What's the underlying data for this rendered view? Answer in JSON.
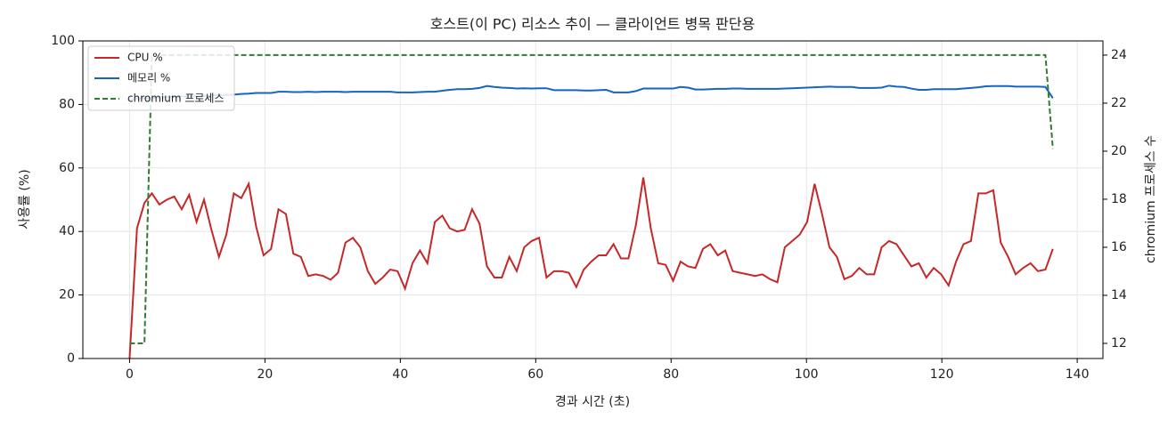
{
  "chart_data": {
    "type": "line",
    "title": "호스트(이 PC) 리소스 추이 — 클라이언트 병목 판단용",
    "x_label": "경과 시간 (초)",
    "y_label": "사용률 (%)",
    "y2_label": "chromium 프로세스 수",
    "xlim": [
      -6.9,
      143.8
    ],
    "xticks": [
      0,
      20,
      40,
      60,
      80,
      100,
      120,
      140
    ],
    "ylim": [
      0,
      100
    ],
    "yticks": [
      0,
      20,
      40,
      60,
      80,
      100
    ],
    "y2lim": [
      11.37,
      24.59
    ],
    "y2ticks": [
      12,
      14,
      16,
      18,
      20,
      22,
      24
    ],
    "grid": true,
    "legend": "upper left",
    "x": [
      0,
      1.1,
      2.2,
      3.3,
      4.4,
      5.5,
      6.6,
      7.7,
      8.8,
      9.9,
      11,
      12.1,
      13.2,
      14.3,
      15.4,
      16.5,
      17.6,
      18.7,
      19.8,
      20.9,
      22,
      23.1,
      24.2,
      25.3,
      26.4,
      27.5,
      28.6,
      29.7,
      30.8,
      31.9,
      33,
      34.1,
      35.2,
      36.3,
      37.4,
      38.5,
      39.6,
      40.7,
      41.8,
      42.9,
      44,
      45.1,
      46.2,
      47.3,
      48.4,
      49.5,
      50.6,
      51.7,
      52.8,
      53.9,
      55,
      56.1,
      57.2,
      58.3,
      59.4,
      60.5,
      61.6,
      62.7,
      63.8,
      64.9,
      66,
      67.1,
      68.2,
      69.3,
      70.4,
      71.5,
      72.6,
      73.7,
      74.8,
      75.9,
      77,
      78.1,
      79.2,
      80.3,
      81.4,
      82.5,
      83.6,
      84.7,
      85.8,
      86.9,
      88,
      89.1,
      90.2,
      91.3,
      92.4,
      93.5,
      94.6,
      95.7,
      96.8,
      97.9,
      99,
      100.1,
      101.2,
      102.3,
      103.4,
      104.5,
      105.6,
      106.7,
      107.8,
      108.9,
      110,
      111.1,
      112.2,
      113.3,
      114.4,
      115.5,
      116.6,
      117.7,
      118.8,
      119.9,
      121,
      122.1,
      123.2,
      124.3,
      125.4,
      126.5,
      127.6,
      128.7,
      129.8,
      130.9,
      132,
      133.1,
      134.2,
      135.3,
      136.4
    ],
    "series": [
      {
        "name": "CPU %",
        "color": "#c62828",
        "values": [
          0,
          41,
          49,
          52,
          48.5,
          50,
          51,
          47,
          51.5,
          43,
          50,
          40.5,
          32,
          39,
          52,
          50.5,
          55,
          41.5,
          32.5,
          34.5,
          47,
          45.5,
          33,
          32,
          26,
          26.5,
          26,
          24.8,
          27,
          36.5,
          38,
          35,
          27.5,
          23.5,
          25.5,
          28,
          27.5,
          22,
          30,
          34,
          30,
          43,
          45,
          41,
          40,
          40.5,
          47,
          42.5,
          29,
          25.5,
          25.5,
          32,
          27.5,
          35,
          37,
          38,
          25.5,
          27.5,
          27.5,
          27,
          22.5,
          28,
          30.5,
          32.5,
          32.5,
          36,
          31.5,
          31.5,
          42,
          57,
          41,
          30,
          29.5,
          24.5,
          30.5,
          29,
          28.5,
          34.5,
          36,
          32.5,
          34,
          27.5,
          27,
          26.5,
          26,
          26.5,
          25,
          24,
          35,
          37,
          39,
          43,
          55,
          45.5,
          35,
          32,
          25,
          26,
          28.5,
          26.5,
          26.5,
          35,
          37,
          36,
          32.5,
          29,
          30,
          25.5,
          28.5,
          26.5,
          23,
          30.5,
          36,
          37,
          52,
          52,
          53,
          36.5,
          32,
          26.5,
          28.5,
          30,
          27.5,
          28,
          34.5
        ]
      },
      {
        "name": "메모리 %",
        "color": "#1565c0",
        "values": [
          81.5,
          81.8,
          82,
          82,
          82.2,
          82.3,
          82.4,
          82.5,
          82.5,
          82.6,
          82.7,
          82.8,
          82.9,
          83,
          83.1,
          83.3,
          83.4,
          83.6,
          83.6,
          83.6,
          84,
          84,
          83.9,
          83.9,
          84,
          83.9,
          84,
          84,
          84,
          83.9,
          84,
          84,
          84,
          84,
          84,
          84,
          83.8,
          83.8,
          83.8,
          83.9,
          84,
          84,
          84.3,
          84.6,
          84.8,
          84.8,
          84.9,
          85.2,
          85.8,
          85.5,
          85.3,
          85.2,
          85,
          85.1,
          85,
          85.1,
          85.1,
          84.5,
          84.5,
          84.5,
          84.5,
          84.4,
          84.4,
          84.5,
          84.6,
          83.8,
          83.8,
          83.8,
          84.2,
          85,
          85,
          85,
          85,
          85,
          85.5,
          85.3,
          84.7,
          84.7,
          84.8,
          84.9,
          84.9,
          85,
          85,
          84.9,
          84.9,
          84.9,
          84.9,
          84.9,
          85,
          85.1,
          85.2,
          85.3,
          85.4,
          85.5,
          85.6,
          85.5,
          85.5,
          85.5,
          85.2,
          85.2,
          85.2,
          85.3,
          85.9,
          85.6,
          85.5,
          85,
          84.6,
          84.6,
          84.8,
          84.8,
          84.8,
          84.8,
          85,
          85.2,
          85.4,
          85.7,
          85.8,
          85.8,
          85.8,
          85.6,
          85.6,
          85.6,
          85.6,
          85.5,
          82
        ]
      },
      {
        "name": "chromium 프로세스",
        "color": "#2e7d32",
        "dashed": true,
        "axis": "y2",
        "values": [
          12,
          12,
          12,
          24,
          24,
          24,
          24,
          24,
          24,
          24,
          24,
          24,
          24,
          24,
          24,
          24,
          24,
          24,
          24,
          24,
          24,
          24,
          24,
          24,
          24,
          24,
          24,
          24,
          24,
          24,
          24,
          24,
          24,
          24,
          24,
          24,
          24,
          24,
          24,
          24,
          24,
          24,
          24,
          24,
          24,
          24,
          24,
          24,
          24,
          24,
          24,
          24,
          24,
          24,
          24,
          24,
          24,
          24,
          24,
          24,
          24,
          24,
          24,
          24,
          24,
          24,
          24,
          24,
          24,
          24,
          24,
          24,
          24,
          24,
          24,
          24,
          24,
          24,
          24,
          24,
          24,
          24,
          24,
          24,
          24,
          24,
          24,
          24,
          24,
          24,
          24,
          24,
          24,
          24,
          24,
          24,
          24,
          24,
          24,
          24,
          24,
          24,
          24,
          24,
          24,
          24,
          24,
          24,
          24,
          24,
          24,
          24,
          24,
          24,
          24,
          24,
          24,
          24,
          24,
          24,
          24,
          24,
          24,
          24,
          20.1
        ]
      }
    ]
  }
}
